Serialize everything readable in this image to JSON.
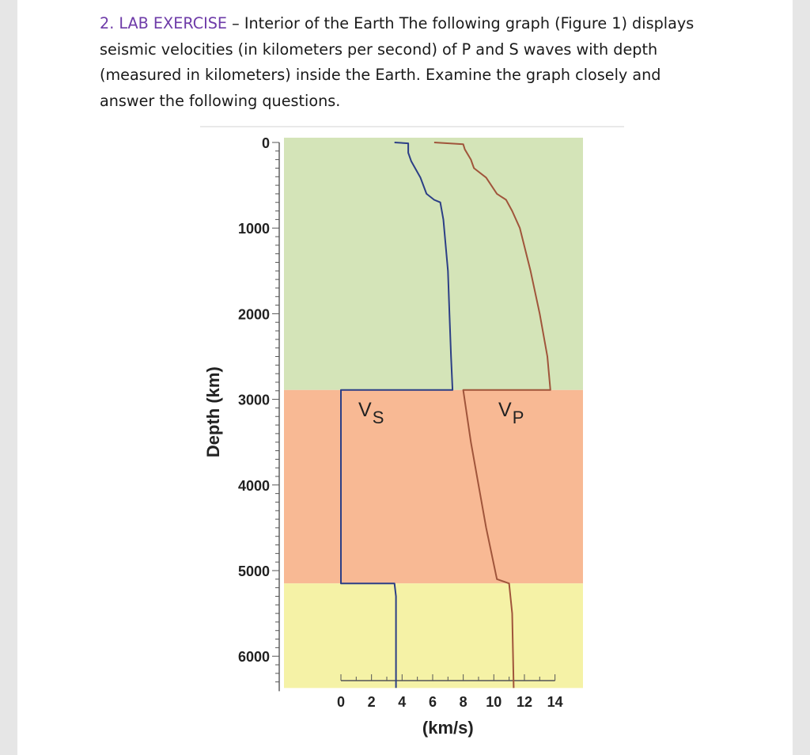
{
  "exercise": {
    "label": "2. LAB EXERCISE",
    "dash": " – ",
    "text": "Interior of the Earth The following graph (Figure 1) displays seismic velocities (in kilometers per second) of P and S waves with depth (measured in kilometers) inside the Earth. Examine the graph closely and answer the following questions."
  },
  "colors": {
    "exercise_label": "#6e3ba8",
    "mantle": "#d4e4b8",
    "outer_core": "#f8b994",
    "inner_core": "#f5f2a6",
    "vs_line": "#2c3f86",
    "vp_line": "#a0553b"
  },
  "chart_data": {
    "type": "line",
    "ylabel": "Depth (km)",
    "xlabel": "(km/s)",
    "xlim": [
      0,
      14
    ],
    "ylim": [
      0,
      6371
    ],
    "y_inverted": true,
    "xticks": [
      0,
      2,
      4,
      6,
      8,
      10,
      12,
      14
    ],
    "yticks": [
      0,
      1000,
      2000,
      3000,
      4000,
      5000,
      6000
    ],
    "grid": false,
    "regions": [
      {
        "name": "mantle",
        "depth": [
          0,
          2891
        ]
      },
      {
        "name": "outer_core",
        "depth": [
          2891,
          5150
        ]
      },
      {
        "name": "inner_core",
        "depth": [
          5150,
          6371
        ]
      }
    ],
    "series": [
      {
        "name": "VS",
        "label_main": "V",
        "label_sub": "S",
        "color": "#2c3f86",
        "points": [
          [
            3.5,
            0
          ],
          [
            4.4,
            10
          ],
          [
            4.4,
            120
          ],
          [
            4.6,
            220
          ],
          [
            5.2,
            410
          ],
          [
            5.6,
            600
          ],
          [
            6.1,
            670
          ],
          [
            6.5,
            700
          ],
          [
            6.7,
            900
          ],
          [
            7.0,
            1500
          ],
          [
            7.1,
            2000
          ],
          [
            7.2,
            2500
          ],
          [
            7.3,
            2891
          ],
          [
            0,
            2891
          ],
          [
            0,
            5150
          ],
          [
            3.5,
            5150
          ],
          [
            3.6,
            5300
          ],
          [
            3.6,
            6371
          ]
        ]
      },
      {
        "name": "VP",
        "label_main": "V",
        "label_sub": "P",
        "color": "#a0553b",
        "points": [
          [
            6.1,
            0
          ],
          [
            8.0,
            20
          ],
          [
            8.1,
            80
          ],
          [
            8.5,
            200
          ],
          [
            8.6,
            250
          ],
          [
            8.7,
            300
          ],
          [
            9.5,
            410
          ],
          [
            10.2,
            600
          ],
          [
            10.8,
            670
          ],
          [
            11.2,
            800
          ],
          [
            11.7,
            1000
          ],
          [
            12.4,
            1500
          ],
          [
            13.0,
            2000
          ],
          [
            13.5,
            2500
          ],
          [
            13.7,
            2891
          ],
          [
            8.0,
            2891
          ],
          [
            8.5,
            3500
          ],
          [
            9.5,
            4500
          ],
          [
            10.2,
            5100
          ],
          [
            11.0,
            5150
          ],
          [
            11.2,
            5500
          ],
          [
            11.3,
            6371
          ]
        ]
      }
    ]
  }
}
